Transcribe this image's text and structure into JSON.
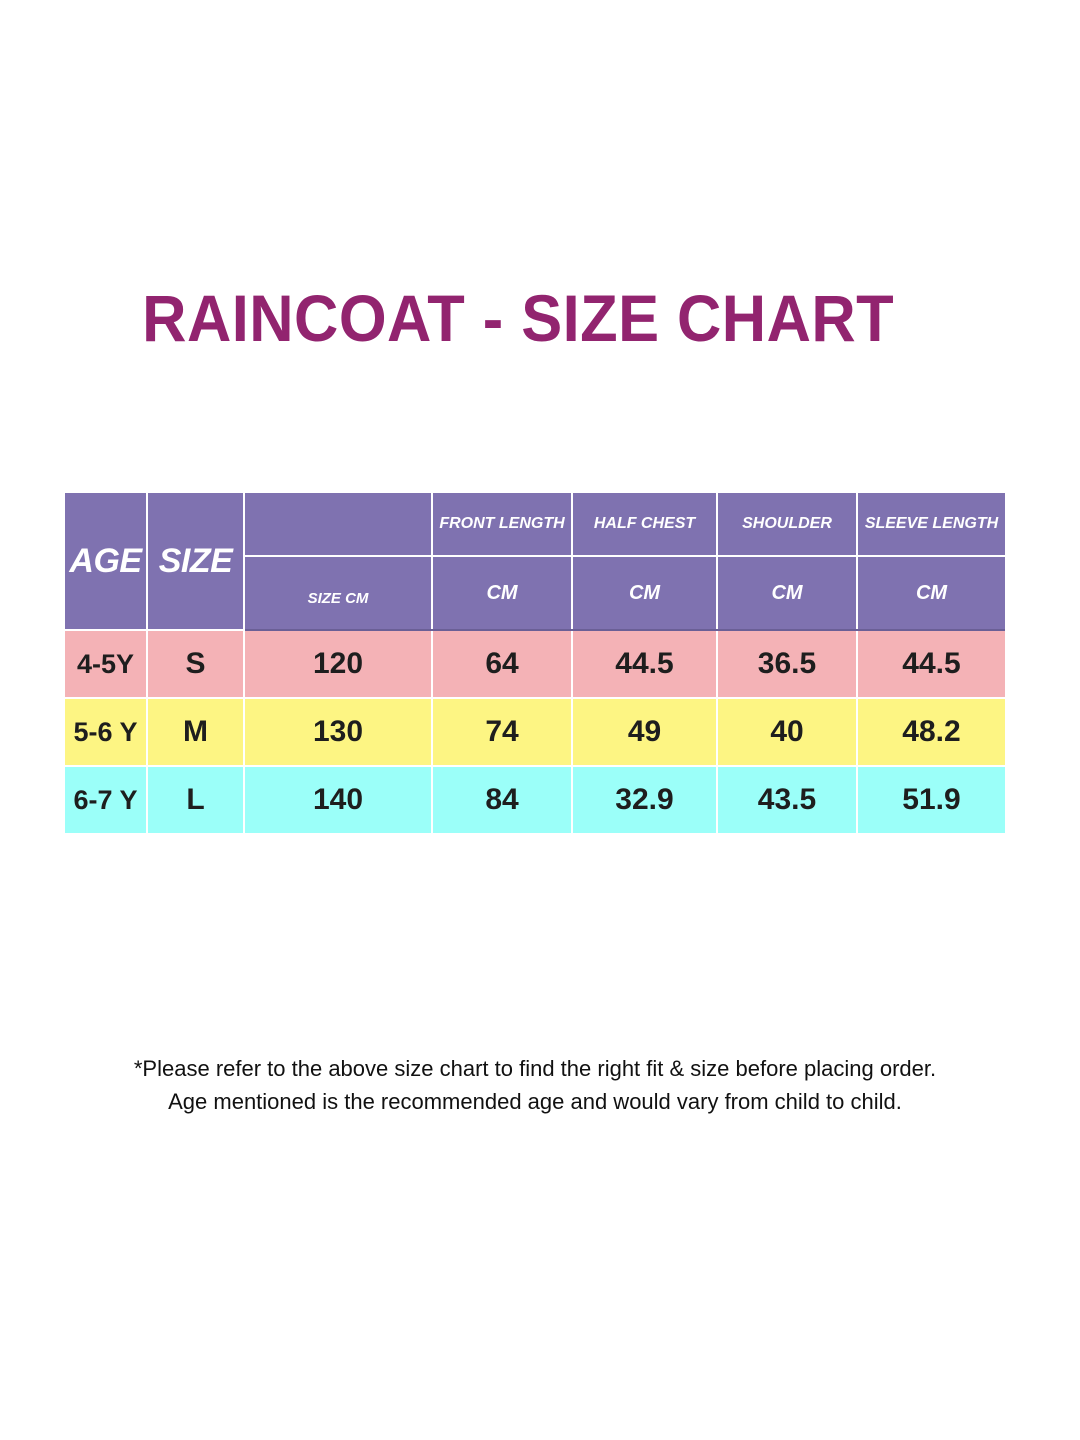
{
  "title": "RAINCOAT - SIZE CHART",
  "table": {
    "headers": {
      "age": "AGE",
      "size": "SIZE",
      "size_cm": "SIZE CM",
      "front_length": "FRONT LENGTH",
      "half_chest": "HALF CHEST",
      "shoulder": "SHOULDER",
      "sleeve_length": "SLEEVE LENGTH",
      "unit": "CM"
    },
    "rows": [
      {
        "age": "4-5Y",
        "size": "S",
        "size_cm": "120",
        "front_length": "64",
        "half_chest": "44.5",
        "shoulder": "36.5",
        "sleeve_length": "44.5"
      },
      {
        "age": "5-6 Y",
        "size": "M",
        "size_cm": "130",
        "front_length": "74",
        "half_chest": "49",
        "shoulder": "40",
        "sleeve_length": "48.2"
      },
      {
        "age": "6-7 Y",
        "size": "L",
        "size_cm": "140",
        "front_length": "84",
        "half_chest": "32.9",
        "shoulder": "43.5",
        "sleeve_length": "51.9"
      }
    ]
  },
  "notes": {
    "line1": "*Please refer to the above size chart to find the right fit & size before placing order.",
    "line2": "Age mentioned is the recommended age and would vary from child to child."
  },
  "colors": {
    "title": "#92246f",
    "header_bg": "#7f72b0",
    "row_s": "#f4b2b6",
    "row_m": "#fdf583",
    "row_l": "#9bfff9"
  }
}
